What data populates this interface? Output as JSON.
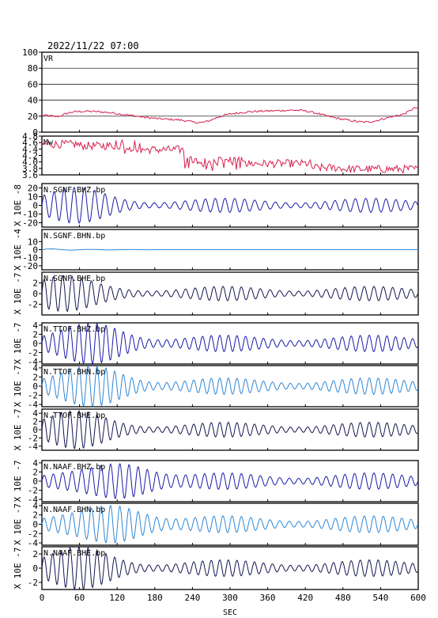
{
  "header": {
    "datetime": "2022/11/22 07:00"
  },
  "chart_data": {
    "type": "line",
    "xlabel": "SEC",
    "xlim": [
      0,
      600
    ],
    "xticks": [
      "0",
      "60",
      "120",
      "180",
      "240",
      "300",
      "360",
      "420",
      "480",
      "540",
      "600"
    ],
    "panels": [
      {
        "label": "VR",
        "unit": "",
        "color": "#d6204f",
        "ylim": [
          0,
          100
        ],
        "yticks": [
          "0",
          "20",
          "40",
          "60",
          "80",
          "100"
        ],
        "grid": true,
        "kind": "vr"
      },
      {
        "label": "Mw",
        "unit": "",
        "color": "#d6204f",
        "ylim": [
          3.6,
          4.8
        ],
        "yticks": [
          "3.6",
          "3.8",
          "4.0",
          "4.2",
          "4.4",
          "4.6",
          "4.8"
        ],
        "grid": false,
        "kind": "mw"
      },
      {
        "label": "N.SGNF.BHZ.bp",
        "unit": "X 10E -8",
        "color": "#1a1aa8",
        "ylim": [
          -25,
          25
        ],
        "yticks": [
          "-20",
          "-10",
          "0",
          "10",
          "20"
        ],
        "grid": false,
        "kind": "wave",
        "amp": 18,
        "env_peak": 0.09,
        "period": 16
      },
      {
        "label": "N.SGNF.BHN.bp",
        "unit": "X 10E -4",
        "color": "#2f86d6",
        "ylim": [
          -25,
          25
        ],
        "yticks": [
          "-20",
          "-10",
          "0",
          "10"
        ],
        "grid": false,
        "kind": "flat"
      },
      {
        "label": "N.SGNF.BHE.bp",
        "unit": "X 10E -7",
        "color": "#141450",
        "ylim": [
          -4,
          4
        ],
        "yticks": [
          "-2",
          "0",
          "2"
        ],
        "grid": false,
        "kind": "wave",
        "amp": 3.0,
        "env_peak": 0.05,
        "period": 15
      },
      {
        "label": "N.TTOF.BHZ.bp",
        "unit": "X 10E -7",
        "color": "#1a1aa8",
        "ylim": [
          -4.5,
          4.5
        ],
        "yticks": [
          "-4",
          "-2",
          "0",
          "2",
          "4"
        ],
        "grid": false,
        "kind": "wave",
        "amp": 4.0,
        "env_peak": 0.14,
        "period": 14
      },
      {
        "label": "N.TTOF.BHN.bp",
        "unit": "X 10E -7",
        "color": "#2f86d6",
        "ylim": [
          -4.5,
          4.5
        ],
        "yticks": [
          "-4",
          "-2",
          "0",
          "2",
          "4"
        ],
        "grid": false,
        "kind": "wave",
        "amp": 4.0,
        "env_peak": 0.14,
        "period": 14
      },
      {
        "label": "N.TTOF.BHE.bp",
        "unit": "X 10E -7",
        "color": "#141450",
        "ylim": [
          -5,
          5
        ],
        "yticks": [
          "-4",
          "-2",
          "0",
          "2",
          "4"
        ],
        "grid": false,
        "kind": "wave",
        "amp": 4.0,
        "env_peak": 0.09,
        "period": 14
      },
      {
        "label": "N.NAAF.BHZ.bp",
        "unit": "X 10E -7",
        "color": "#1a1aa8",
        "ylim": [
          -4.5,
          4.5
        ],
        "yticks": [
          "-4",
          "-2",
          "0",
          "2",
          "4"
        ],
        "grid": false,
        "kind": "wave",
        "amp": 4.0,
        "env_peak": 0.22,
        "period": 15
      },
      {
        "label": "N.NAAF.BHN.bp",
        "unit": "X 10E -7",
        "color": "#2f86d6",
        "ylim": [
          -4.5,
          4.5
        ],
        "yticks": [
          "-4",
          "-2",
          "0",
          "2",
          "4"
        ],
        "grid": false,
        "kind": "wave",
        "amp": 4.0,
        "env_peak": 0.2,
        "period": 15
      },
      {
        "label": "N.NAAF.BHE.bp",
        "unit": "X 10E -7",
        "color": "#141450",
        "ylim": [
          -3,
          3
        ],
        "yticks": [
          "-2",
          "0",
          "2"
        ],
        "grid": false,
        "kind": "wave",
        "amp": 2.6,
        "env_peak": 0.1,
        "period": 14
      }
    ]
  }
}
